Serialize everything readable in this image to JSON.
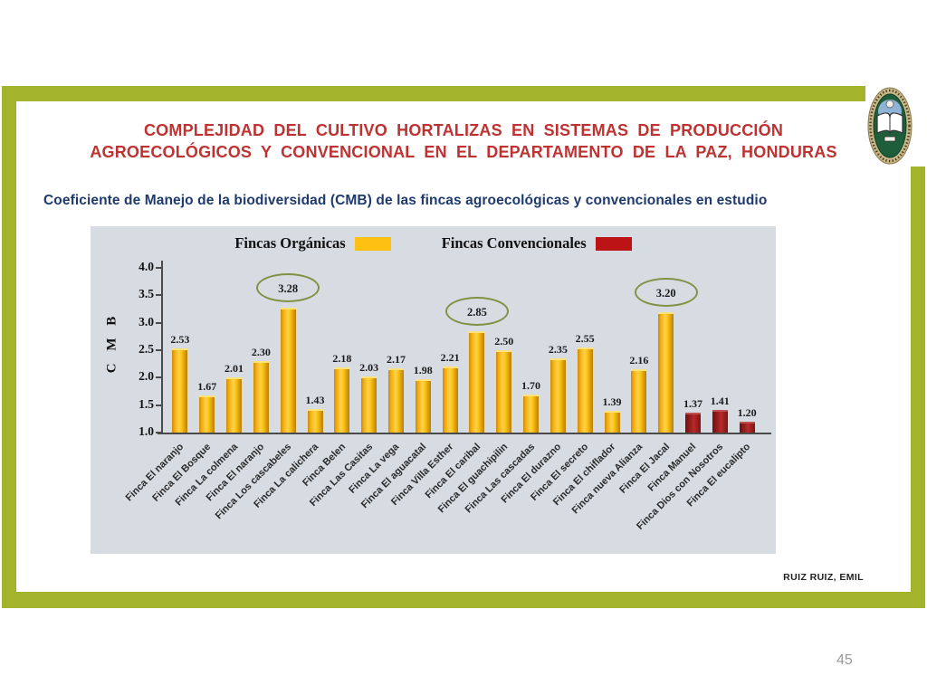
{
  "slide": {
    "title_line1": "COMPLEJIDAD  DEL  CULTIVO  HORTALIZAS  EN  SISTEMAS  DE  PRODUCCIÓN",
    "title_line2": "AGROECOLÓGICOS  Y  CONVENCIONAL  EN  EL  DEPARTAMENTO  DE  LA PAZ, HONDURAS",
    "subtitle": "Coeficiente de Manejo de la biodiversidad (CMB) de las fincas agroecológicas y convencionales en estudio",
    "credit": "RUIZ RUIZ, EMIL",
    "page_number": "45",
    "logo": "university-seal"
  },
  "colors": {
    "frame_green": "#a3b32b",
    "title_red": "#be3232",
    "subtitle_navy": "#1e3a6e",
    "panel_bg": "#d7dce3",
    "legend_organic": "#fdc013",
    "legend_conventional": "#bc1414",
    "bar_organic": "#f3ae10",
    "bar_conventional": "#9e1f1f",
    "circle_stroke": "#7f9345"
  },
  "chart_data": {
    "type": "bar",
    "title": "Coeficiente de Manejo de la biodiversidad (CMB) de las fincas agroecológicas y convencionales en estudio",
    "xlabel": "",
    "ylabel": "C M B",
    "ylim": [
      1.0,
      4.0
    ],
    "yticks": [
      4.0,
      3.5,
      3.0,
      2.5,
      2.0,
      1.5,
      1.0
    ],
    "grid": false,
    "legend_position": "top",
    "legend": [
      {
        "label": "Fincas Orgánicas",
        "group": "organica"
      },
      {
        "label": "Fincas Convencionales",
        "group": "convencional"
      }
    ],
    "bars": [
      {
        "label": "Finca El naranjo",
        "value": 2.53,
        "group": "organica",
        "circled": false
      },
      {
        "label": "Finca El Bosque",
        "value": 1.67,
        "group": "organica",
        "circled": false
      },
      {
        "label": "Finca La colmena",
        "value": 2.01,
        "group": "organica",
        "circled": false
      },
      {
        "label": "Finca El naranjo",
        "value": 2.3,
        "group": "organica",
        "circled": false
      },
      {
        "label": "Finca Los cascabeles",
        "value": 3.28,
        "group": "organica",
        "circled": true
      },
      {
        "label": "Finca La calichera",
        "value": 1.43,
        "group": "organica",
        "circled": false
      },
      {
        "label": "Finca Belen",
        "value": 2.18,
        "group": "organica",
        "circled": false
      },
      {
        "label": "Finca Las Casitas",
        "value": 2.03,
        "group": "organica",
        "circled": false
      },
      {
        "label": "Finca La vega",
        "value": 2.17,
        "group": "organica",
        "circled": false
      },
      {
        "label": "Finca El aguacatal",
        "value": 1.98,
        "group": "organica",
        "circled": false
      },
      {
        "label": "Finca Villa Esther",
        "value": 2.21,
        "group": "organica",
        "circled": false
      },
      {
        "label": "Finca El caribal",
        "value": 2.85,
        "group": "organica",
        "circled": true
      },
      {
        "label": "Finca El guachipilin",
        "value": 2.5,
        "group": "organica",
        "circled": false
      },
      {
        "label": "Finca Las cascadas",
        "value": 1.7,
        "group": "organica",
        "circled": false
      },
      {
        "label": "Finca El durazno",
        "value": 2.35,
        "group": "organica",
        "circled": false
      },
      {
        "label": "Finca El secreto",
        "value": 2.55,
        "group": "organica",
        "circled": false
      },
      {
        "label": "Finca El chiflador",
        "value": 1.39,
        "group": "organica",
        "circled": false
      },
      {
        "label": "Finca nueva Alianza",
        "value": 2.16,
        "group": "organica",
        "circled": false
      },
      {
        "label": "Finca El Jacal",
        "value": 3.2,
        "group": "organica",
        "circled": true
      },
      {
        "label": "Finca Manuel",
        "value": 1.37,
        "group": "convencional",
        "circled": false
      },
      {
        "label": "Finca Dios con Nosotros",
        "value": 1.41,
        "group": "convencional",
        "circled": false
      },
      {
        "label": "Finca El eucalipto",
        "value": 1.2,
        "group": "convencional",
        "circled": false
      }
    ]
  }
}
